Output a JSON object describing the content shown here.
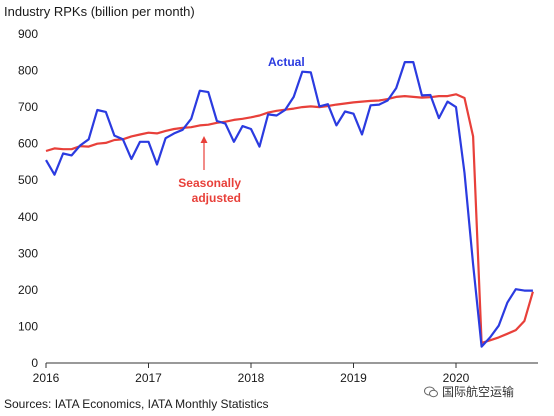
{
  "chart_data": {
    "type": "line",
    "title": "Industry RPKs (billion per month)",
    "xlabel": "",
    "ylabel": "",
    "ylim": [
      0,
      900
    ],
    "y_ticks": [
      0,
      100,
      200,
      300,
      400,
      500,
      600,
      700,
      800,
      900
    ],
    "x_ticks": [
      {
        "label": "2016",
        "value": 2016.0
      },
      {
        "label": "2017",
        "value": 2017.0
      },
      {
        "label": "2018",
        "value": 2018.0
      },
      {
        "label": "2019",
        "value": 2019.0
      },
      {
        "label": "2020",
        "value": 2020.0
      }
    ],
    "grid": false,
    "series": [
      {
        "name": "Actual",
        "color": "#2b3be0",
        "x": [
          2016.0,
          2016.083,
          2016.167,
          2016.25,
          2016.333,
          2016.417,
          2016.5,
          2016.583,
          2016.667,
          2016.75,
          2016.833,
          2016.917,
          2017.0,
          2017.083,
          2017.167,
          2017.25,
          2017.333,
          2017.417,
          2017.5,
          2017.583,
          2017.667,
          2017.75,
          2017.833,
          2017.917,
          2018.0,
          2018.083,
          2018.167,
          2018.25,
          2018.333,
          2018.417,
          2018.5,
          2018.583,
          2018.667,
          2018.75,
          2018.833,
          2018.917,
          2019.0,
          2019.083,
          2019.167,
          2019.25,
          2019.333,
          2019.417,
          2019.5,
          2019.583,
          2019.667,
          2019.75,
          2019.833,
          2019.917,
          2020.0,
          2020.083,
          2020.167,
          2020.25,
          2020.333,
          2020.417,
          2020.5,
          2020.583,
          2020.667,
          2020.75
        ],
        "values": [
          555,
          515,
          573,
          568,
          595,
          612,
          692,
          687,
          622,
          612,
          558,
          605,
          605,
          543,
          615,
          628,
          638,
          668,
          745,
          741,
          662,
          655,
          605,
          648,
          640,
          592,
          680,
          677,
          692,
          728,
          797,
          795,
          702,
          708,
          650,
          688,
          682,
          625,
          705,
          707,
          718,
          752,
          823,
          823,
          732,
          733,
          670,
          715,
          700,
          520,
          270,
          45,
          70,
          102,
          165,
          202,
          198,
          198
        ]
      },
      {
        "name": "Seasonally adjusted",
        "color": "#e8403a",
        "x": [
          2016.0,
          2016.083,
          2016.167,
          2016.25,
          2016.333,
          2016.417,
          2016.5,
          2016.583,
          2016.667,
          2016.75,
          2016.833,
          2016.917,
          2017.0,
          2017.083,
          2017.167,
          2017.25,
          2017.333,
          2017.417,
          2017.5,
          2017.583,
          2017.667,
          2017.75,
          2017.833,
          2017.917,
          2018.0,
          2018.083,
          2018.167,
          2018.25,
          2018.333,
          2018.417,
          2018.5,
          2018.583,
          2018.667,
          2018.75,
          2018.833,
          2018.917,
          2019.0,
          2019.083,
          2019.167,
          2019.25,
          2019.333,
          2019.417,
          2019.5,
          2019.583,
          2019.667,
          2019.75,
          2019.833,
          2019.917,
          2020.0,
          2020.083,
          2020.167,
          2020.25,
          2020.333,
          2020.417,
          2020.5,
          2020.583,
          2020.667,
          2020.75
        ],
        "values": [
          580,
          587,
          585,
          585,
          593,
          592,
          600,
          602,
          610,
          612,
          620,
          625,
          630,
          628,
          635,
          640,
          643,
          645,
          650,
          652,
          657,
          660,
          665,
          668,
          672,
          677,
          685,
          690,
          693,
          696,
          700,
          702,
          700,
          703,
          707,
          710,
          713,
          715,
          717,
          718,
          722,
          728,
          730,
          728,
          726,
          727,
          730,
          730,
          735,
          725,
          620,
          55,
          62,
          70,
          80,
          90,
          115,
          195
        ]
      }
    ],
    "annotations": [
      {
        "text": "Actual",
        "series": "Actual"
      },
      {
        "text": "Seasonally",
        "series": "Seasonally adjusted"
      },
      {
        "text": "adjusted",
        "series": "Seasonally adjusted"
      }
    ]
  },
  "source": "Sources: IATA Economics, IATA Monthly Statistics",
  "watermark": "国际航空运输"
}
